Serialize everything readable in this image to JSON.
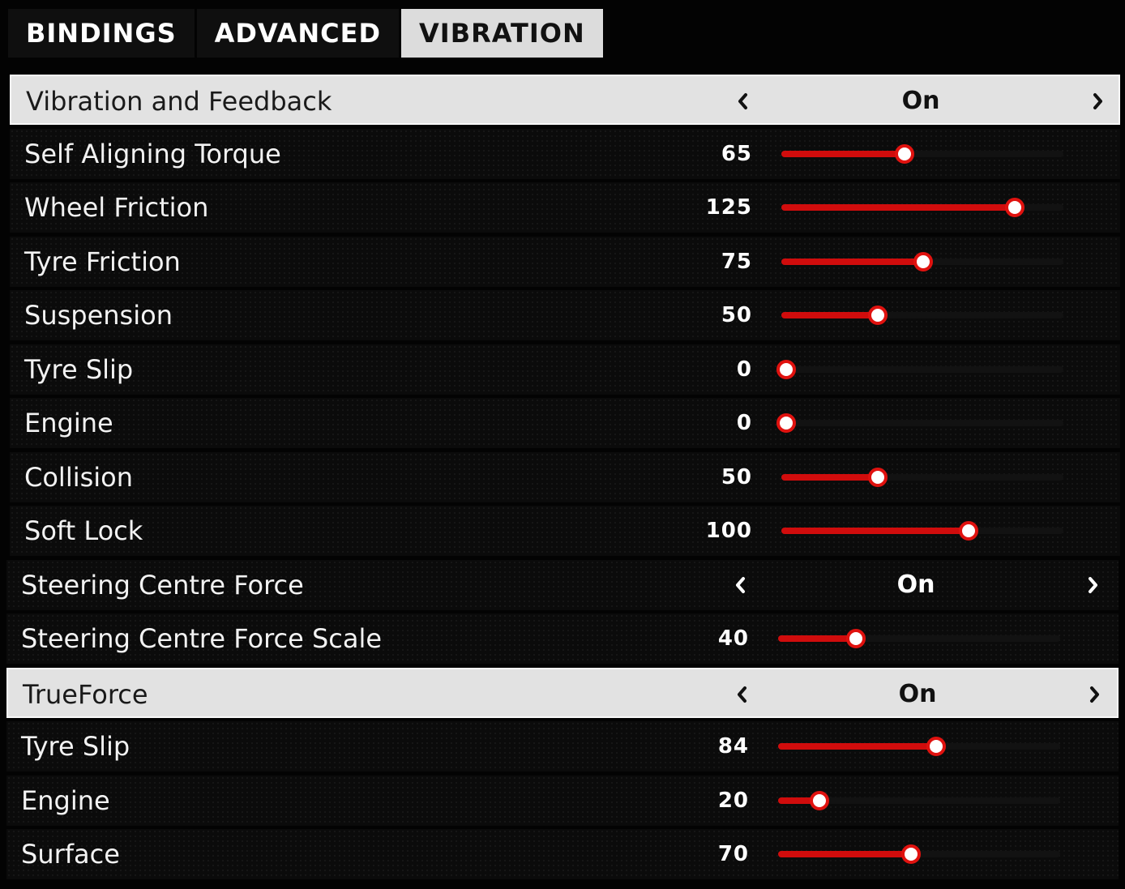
{
  "tabs": [
    {
      "label": "BINDINGS",
      "active": false
    },
    {
      "label": "ADVANCED",
      "active": false
    },
    {
      "label": "VIBRATION",
      "active": true
    }
  ],
  "slider_max": 150,
  "colors": {
    "accent": "#d00c0c",
    "knob_border": "#e0120f",
    "selected_row": "#e2e2e2",
    "row_background": "#0b0b0b"
  },
  "settings": [
    {
      "label": "Vibration and Feedback",
      "type": "toggle",
      "value": "On",
      "selected": true
    },
    {
      "label": "Self Aligning Torque",
      "type": "slider",
      "value": 65
    },
    {
      "label": "Wheel Friction",
      "type": "slider",
      "value": 125
    },
    {
      "label": "Tyre Friction",
      "type": "slider",
      "value": 75
    },
    {
      "label": "Suspension",
      "type": "slider",
      "value": 50
    },
    {
      "label": "Tyre Slip",
      "type": "slider",
      "value": 0
    },
    {
      "label": "Engine",
      "type": "slider",
      "value": 0
    },
    {
      "label": "Collision",
      "type": "slider",
      "value": 50
    },
    {
      "label": "Soft Lock",
      "type": "slider",
      "value": 100
    },
    {
      "label": "Steering Centre Force",
      "type": "toggle",
      "value": "On",
      "selected": false
    },
    {
      "label": "Steering Centre Force Scale",
      "type": "slider",
      "value": 40
    },
    {
      "label": "TrueForce",
      "type": "toggle",
      "value": "On",
      "selected": true
    },
    {
      "label": "Tyre Slip",
      "type": "slider",
      "value": 84
    },
    {
      "label": "Engine",
      "type": "slider",
      "value": 20
    },
    {
      "label": "Surface",
      "type": "slider",
      "value": 70
    }
  ]
}
